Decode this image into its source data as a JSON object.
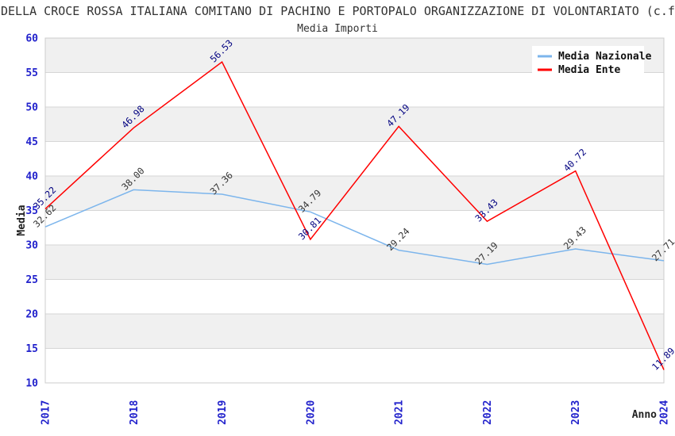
{
  "header": {
    "title": "DELLA CROCE ROSSA ITALIANA COMITANO DI PACHINO E PORTOPALO ORGANIZZAZIONE DI VOLONTARIATO (c.f",
    "subtitle": "Media Importi"
  },
  "chart_data": {
    "type": "line",
    "title": "Media Importi",
    "xlabel": "Anno",
    "ylabel": "Media",
    "x": [
      "2017",
      "2018",
      "2019",
      "2020",
      "2021",
      "2022",
      "2023",
      "2024"
    ],
    "series": [
      {
        "name": "Media Nazionale",
        "color": "#7cb5ec",
        "label_color": "#333333",
        "values": [
          32.62,
          38.0,
          37.36,
          34.79,
          29.24,
          27.19,
          29.43,
          27.71
        ],
        "labels": [
          "32.62",
          "38.00",
          "37.36",
          "34.79",
          "29.24",
          "27.19",
          "29.43",
          "27.71"
        ]
      },
      {
        "name": "Media Ente",
        "color": "#ff0000",
        "label_color": "#000080",
        "values": [
          35.22,
          46.98,
          56.53,
          30.81,
          47.19,
          33.43,
          40.72,
          11.89
        ],
        "labels": [
          "35.22",
          "46.98",
          "56.53",
          "30.81",
          "47.19",
          "33.43",
          "40.72",
          "11.89"
        ]
      }
    ],
    "ylim": [
      10,
      60
    ],
    "ytick_step": 5,
    "y_ticks": [
      "10",
      "15",
      "20",
      "25",
      "30",
      "35",
      "40",
      "45",
      "50",
      "55",
      "60"
    ],
    "grid": "horizontal-bands",
    "legend_position": "top-right"
  },
  "colors": {
    "tick_label": "#2222cc",
    "axis_text": "#222222",
    "band_gray": "#f0f0f0",
    "gridline": "#d6d6d6",
    "plot_border": "#cccccc",
    "legend_background": "#ffffff",
    "background": "#ffffff"
  }
}
